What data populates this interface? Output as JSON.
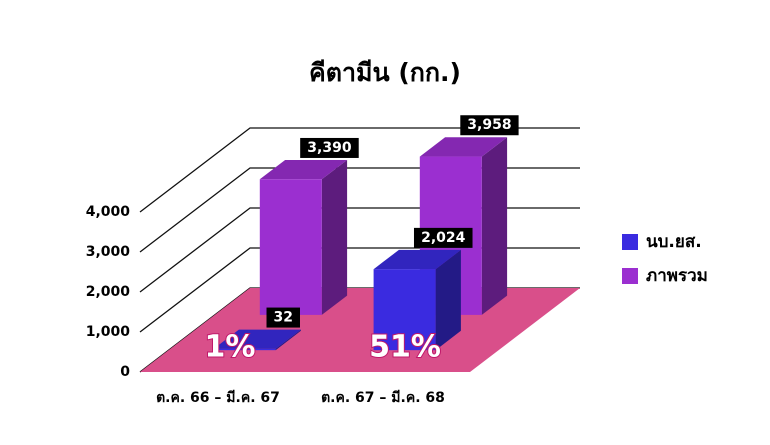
{
  "chart_data": {
    "type": "bar3d",
    "title": "คีตามีน (กก.)",
    "categories": [
      "ต.ค. 66 – มี.ค. 67",
      "ต.ค. 67 – มี.ค. 68"
    ],
    "series": [
      {
        "name": "นบ.ยส.",
        "color": "#3a2be0",
        "values": [
          32,
          2024
        ],
        "value_labels": [
          "32",
          "2,024"
        ]
      },
      {
        "name": "ภาพรวม",
        "color": "#9b2fd0",
        "values": [
          3390,
          3958
        ],
        "value_labels": [
          "3,390",
          "3,958"
        ]
      }
    ],
    "annotations": [
      "1%",
      "51%"
    ],
    "floor_color": "#d94f8a",
    "ylim": [
      0,
      4000
    ],
    "yticks": [
      0,
      {
        "value": 1000,
        "label": "1,000"
      },
      {
        "value": 2000,
        "label": "2,000"
      },
      {
        "value": 3000,
        "label": "3,000"
      },
      {
        "value": 4000,
        "label": "4,000"
      }
    ],
    "grid": true,
    "legend": "right"
  }
}
